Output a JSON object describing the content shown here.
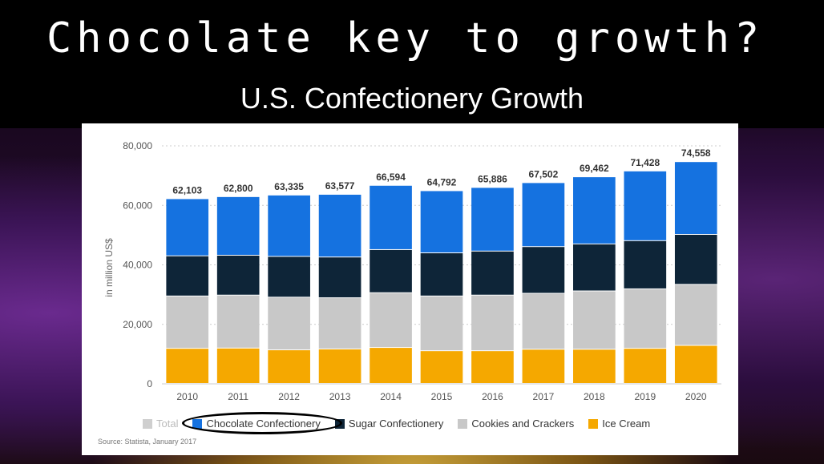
{
  "slide": {
    "title": "Chocolate key to growth?",
    "subtitle": "U.S. Confectionery Growth"
  },
  "colors": {
    "ice_cream": "#f5a800",
    "cookies": "#c8c8c8",
    "sugar": "#0e2538",
    "chocolate": "#1572e0",
    "total": "#cfcfcf"
  },
  "chart_data": {
    "type": "bar",
    "stacked": true,
    "title": "",
    "xlabel": "",
    "ylabel": "in million US$",
    "ylim": [
      0,
      80000
    ],
    "yticks": [
      0,
      20000,
      40000,
      60000,
      80000
    ],
    "ytick_labels": [
      "0",
      "20,000",
      "40,000",
      "60,000",
      "80,000"
    ],
    "categories": [
      "2010",
      "2011",
      "2012",
      "2013",
      "2014",
      "2015",
      "2016",
      "2017",
      "2018",
      "2019",
      "2020"
    ],
    "totals": [
      62103,
      62800,
      63335,
      63577,
      66594,
      64792,
      65886,
      67502,
      69462,
      71428,
      74558
    ],
    "total_labels": [
      "62,103",
      "62,800",
      "63,335",
      "63,577",
      "66,594",
      "64,792",
      "65,886",
      "67,502",
      "69,462",
      "71,428",
      "74,558"
    ],
    "series": [
      {
        "name": "Ice Cream",
        "values": [
          11800,
          11900,
          11300,
          11600,
          12100,
          11000,
          11000,
          11500,
          11500,
          11800,
          12800
        ]
      },
      {
        "name": "Cookies and Crackers",
        "values": [
          17600,
          17800,
          17700,
          17200,
          18400,
          18400,
          18700,
          18800,
          19600,
          20000,
          20500
        ]
      },
      {
        "name": "Sugar Confectionery",
        "values": [
          13500,
          13400,
          13700,
          13700,
          14500,
          14500,
          14800,
          15700,
          15800,
          16200,
          16800
        ]
      },
      {
        "name": "Chocolate Confectionery",
        "values": [
          19203,
          19700,
          20635,
          21077,
          21594,
          20892,
          21386,
          21502,
          22562,
          23428,
          24458
        ]
      }
    ],
    "legend": [
      "Total",
      "Chocolate Confectionery",
      "Sugar Confectionery",
      "Cookies and Crackers",
      "Ice Cream"
    ],
    "legend_position": "bottom",
    "grid": true,
    "source": "Source: Statista, January 2017"
  }
}
